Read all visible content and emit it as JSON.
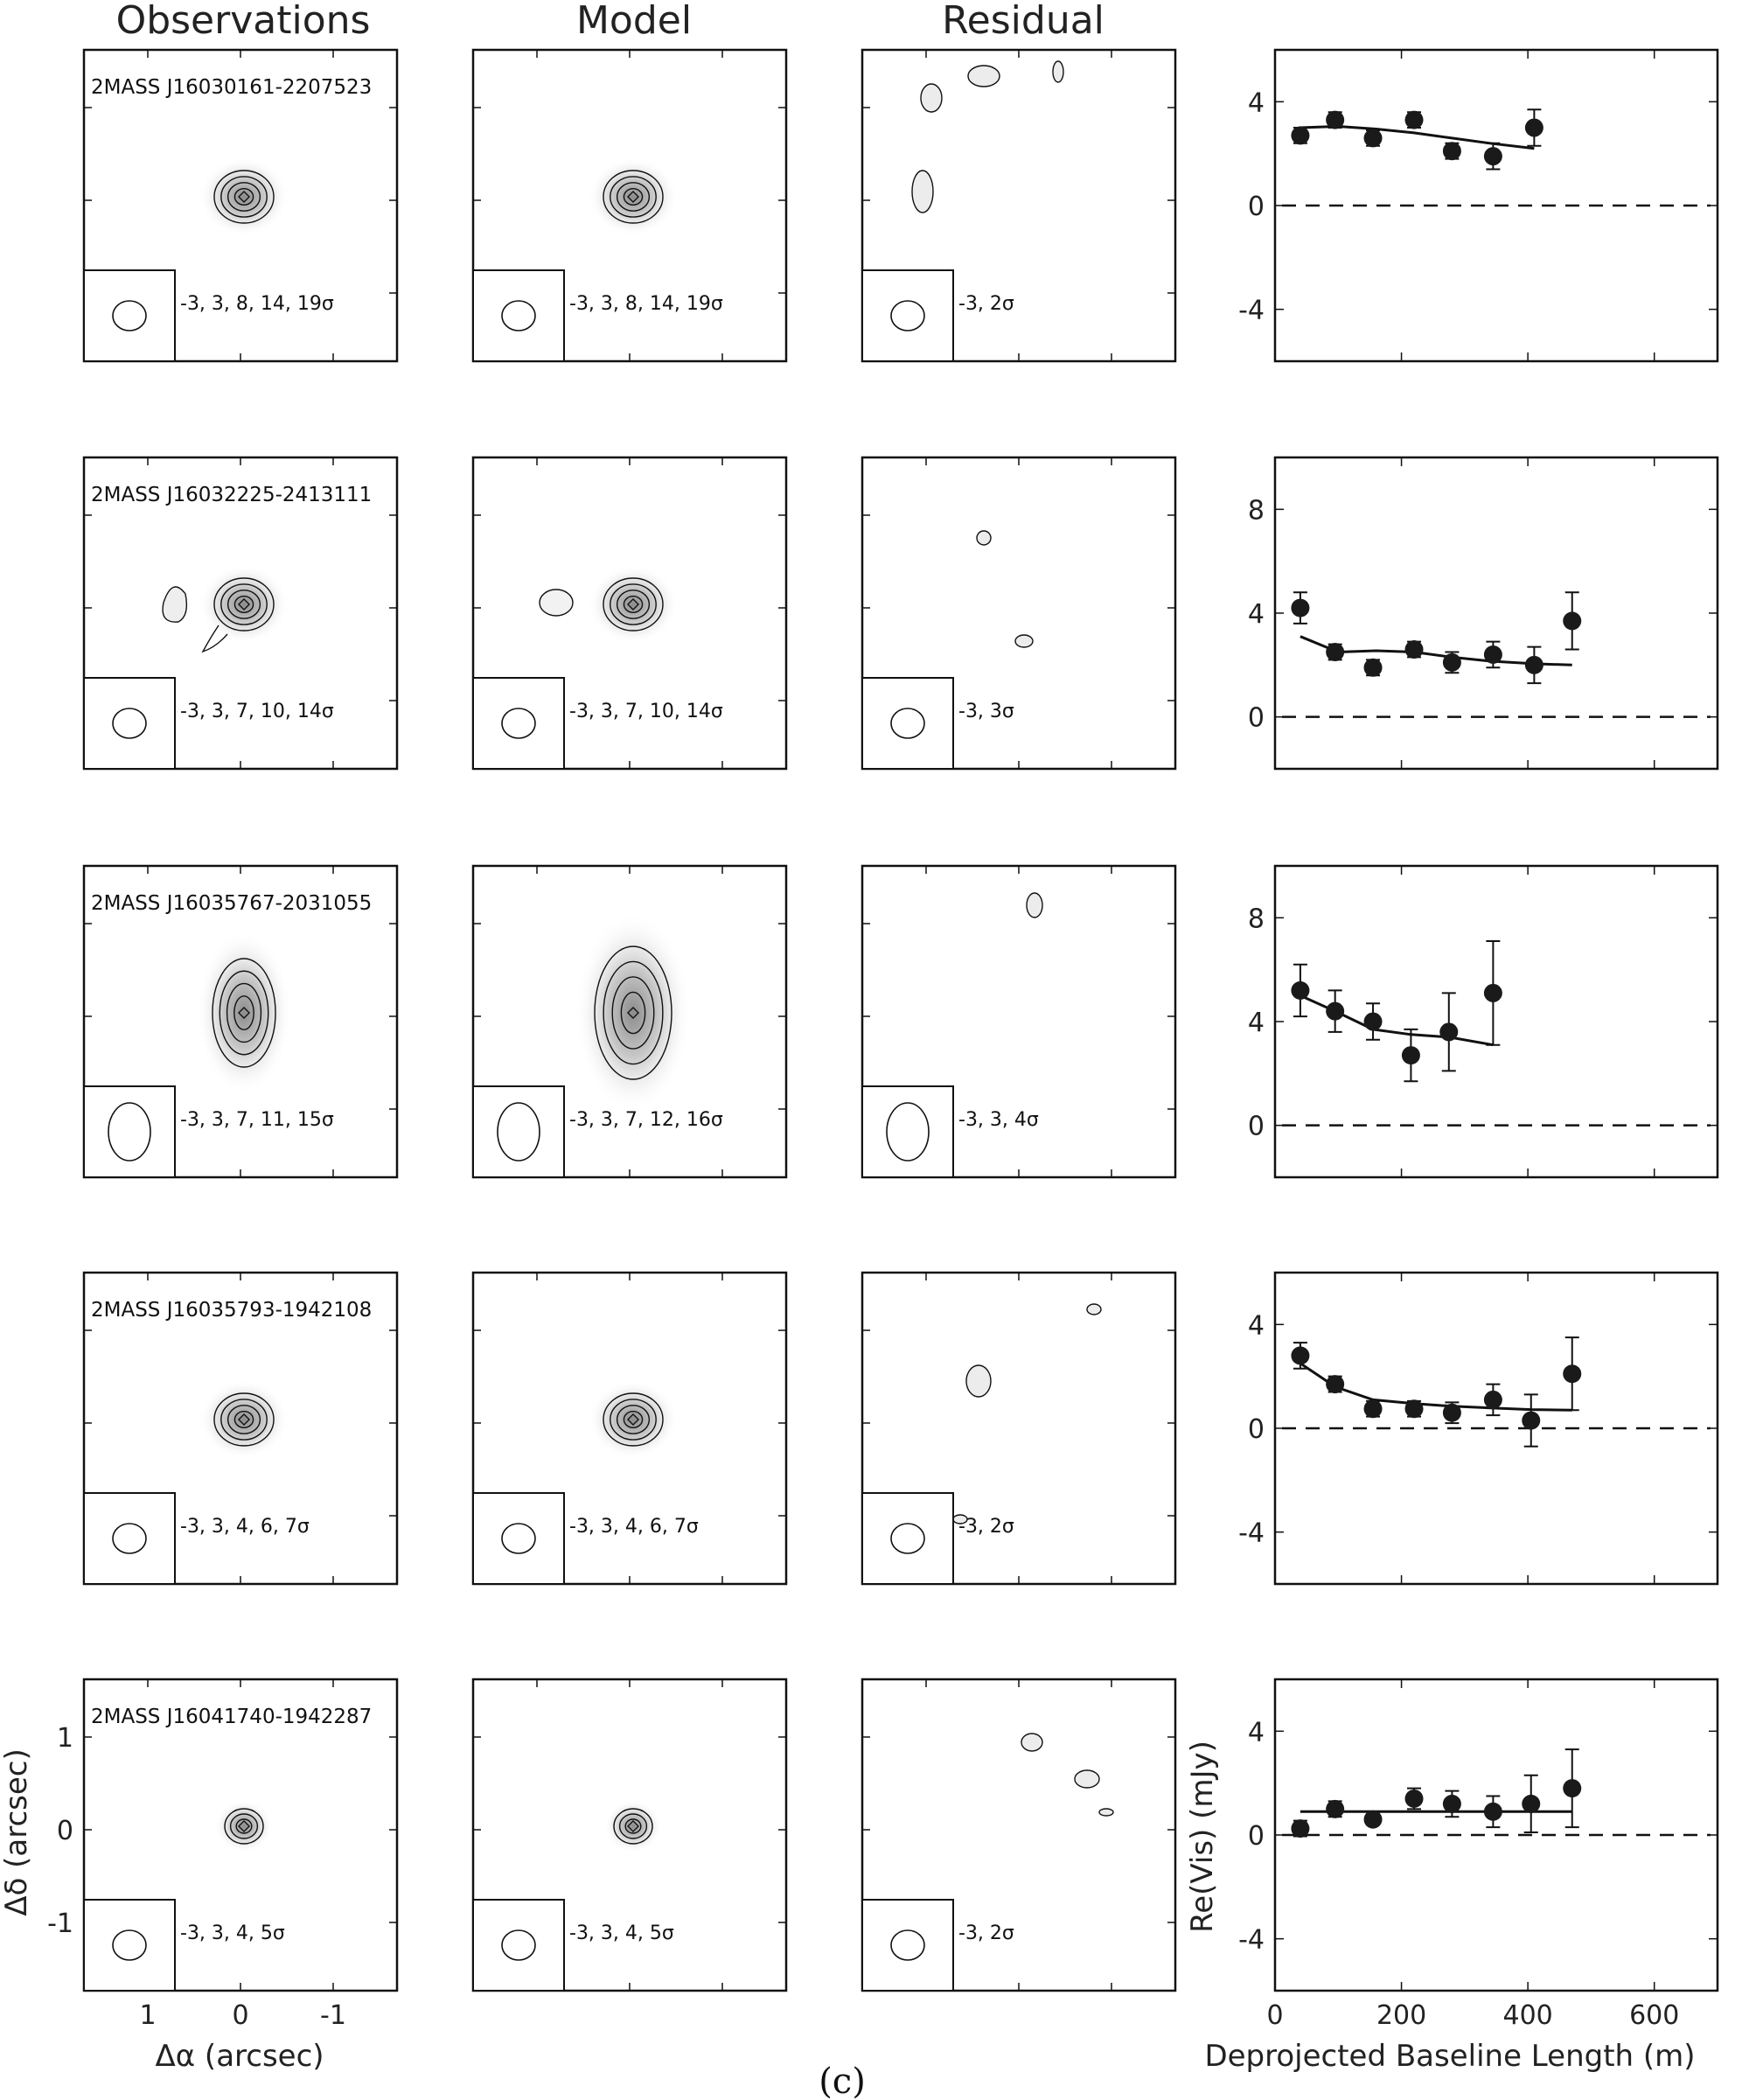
{
  "headers": [
    "Observations",
    "Model",
    "Residual"
  ],
  "caption": "(c)",
  "image_axes": {
    "xlabel": "Δα (arcsec)",
    "ylabel": "Δδ (arcsec)",
    "xticks": [
      "1",
      "0",
      "-1"
    ],
    "yticks": [
      "1",
      "0",
      "-1"
    ]
  },
  "vis_axes": {
    "xlabel": "Deprojected Baseline Length (m)",
    "ylabel": "Re(Vis) (mJy)",
    "xticks": [
      "0",
      "200",
      "400",
      "600"
    ]
  },
  "rows": [
    {
      "source": "2MASS J16030161-2207523",
      "obs_levels": "-3, 3, 8, 14, 19σ",
      "model_levels": "-3, 3, 8, 14, 19σ",
      "resid_levels": "-3, 2σ",
      "source_shape": "compact",
      "companion": false
    },
    {
      "source": "2MASS J16032225-2413111",
      "obs_levels": "-3, 3, 7, 10, 14σ",
      "model_levels": "-3, 3, 7, 10, 14σ",
      "resid_levels": "-3, 3σ",
      "source_shape": "compact",
      "companion": true
    },
    {
      "source": "2MASS J16035767-2031055",
      "obs_levels": "-3, 3, 7, 11, 15σ",
      "model_levels": "-3, 3, 7, 12, 16σ",
      "resid_levels": "-3, 3, 4σ",
      "source_shape": "elongated",
      "companion": false
    },
    {
      "source": "2MASS J16035793-1942108",
      "obs_levels": "-3, 3, 4, 6, 7σ",
      "model_levels": "-3, 3, 4, 6, 7σ",
      "resid_levels": "-3, 2σ",
      "source_shape": "compact",
      "companion": false
    },
    {
      "source": "2MASS J16041740-1942287",
      "obs_levels": "-3, 3, 4, 5σ",
      "model_levels": "-3, 3, 4, 5σ",
      "resid_levels": "-3, 2σ",
      "source_shape": "small",
      "companion": false
    }
  ],
  "chart_data": [
    {
      "type": "scatter",
      "xlabel": "Deprojected Baseline Length (m)",
      "ylabel": "Re(Vis) (mJy)",
      "xlim": [
        0,
        700
      ],
      "ylim": [
        -6,
        6
      ],
      "yticks": [
        -4,
        0,
        4
      ],
      "points": [
        {
          "x": 40,
          "y": 2.7,
          "err": 0.3
        },
        {
          "x": 95,
          "y": 3.3,
          "err": 0.3
        },
        {
          "x": 155,
          "y": 2.6,
          "err": 0.3
        },
        {
          "x": 220,
          "y": 3.3,
          "err": 0.3
        },
        {
          "x": 280,
          "y": 2.1,
          "err": 0.3
        },
        {
          "x": 345,
          "y": 1.9,
          "err": 0.5
        },
        {
          "x": 410,
          "y": 3.0,
          "err": 0.7
        }
      ],
      "model_line": {
        "x": [
          40,
          100,
          160,
          220,
          280,
          340,
          410
        ],
        "y": [
          3.0,
          3.05,
          2.95,
          2.8,
          2.6,
          2.4,
          2.2
        ]
      }
    },
    {
      "type": "scatter",
      "xlabel": "Deprojected Baseline Length (m)",
      "ylabel": "Re(Vis) (mJy)",
      "xlim": [
        0,
        700
      ],
      "ylim": [
        -2,
        10
      ],
      "yticks": [
        0,
        4,
        8
      ],
      "points": [
        {
          "x": 40,
          "y": 4.2,
          "err": 0.6
        },
        {
          "x": 95,
          "y": 2.5,
          "err": 0.3
        },
        {
          "x": 155,
          "y": 1.9,
          "err": 0.3
        },
        {
          "x": 220,
          "y": 2.6,
          "err": 0.3
        },
        {
          "x": 280,
          "y": 2.1,
          "err": 0.4
        },
        {
          "x": 345,
          "y": 2.4,
          "err": 0.5
        },
        {
          "x": 410,
          "y": 2.0,
          "err": 0.7
        },
        {
          "x": 470,
          "y": 3.7,
          "err": 1.1
        }
      ],
      "model_line": {
        "x": [
          40,
          100,
          160,
          220,
          280,
          340,
          410,
          470
        ],
        "y": [
          3.1,
          2.5,
          2.55,
          2.5,
          2.3,
          2.15,
          2.05,
          2.0
        ]
      }
    },
    {
      "type": "scatter",
      "xlabel": "Deprojected Baseline Length (m)",
      "ylabel": "Re(Vis) (mJy)",
      "xlim": [
        0,
        700
      ],
      "ylim": [
        -2,
        10
      ],
      "yticks": [
        0,
        4,
        8
      ],
      "points": [
        {
          "x": 40,
          "y": 5.2,
          "err": 1.0
        },
        {
          "x": 95,
          "y": 4.4,
          "err": 0.8
        },
        {
          "x": 155,
          "y": 4.0,
          "err": 0.7
        },
        {
          "x": 215,
          "y": 2.7,
          "err": 1.0
        },
        {
          "x": 275,
          "y": 3.6,
          "err": 1.5
        },
        {
          "x": 345,
          "y": 5.1,
          "err": 2.0
        }
      ],
      "model_line": {
        "x": [
          40,
          95,
          155,
          215,
          275,
          345
        ],
        "y": [
          5.0,
          4.4,
          3.7,
          3.5,
          3.4,
          3.1
        ]
      }
    },
    {
      "type": "scatter",
      "xlabel": "Deprojected Baseline Length (m)",
      "ylabel": "Re(Vis) (mJy)",
      "xlim": [
        0,
        700
      ],
      "ylim": [
        -6,
        6
      ],
      "yticks": [
        -4,
        0,
        4
      ],
      "points": [
        {
          "x": 40,
          "y": 2.8,
          "err": 0.5
        },
        {
          "x": 95,
          "y": 1.7,
          "err": 0.3
        },
        {
          "x": 155,
          "y": 0.75,
          "err": 0.3
        },
        {
          "x": 220,
          "y": 0.75,
          "err": 0.3
        },
        {
          "x": 280,
          "y": 0.6,
          "err": 0.4
        },
        {
          "x": 345,
          "y": 1.1,
          "err": 0.6
        },
        {
          "x": 405,
          "y": 0.3,
          "err": 1.0
        },
        {
          "x": 470,
          "y": 2.1,
          "err": 1.4
        }
      ],
      "model_line": {
        "x": [
          40,
          95,
          155,
          220,
          280,
          345,
          405,
          470
        ],
        "y": [
          2.5,
          1.6,
          1.1,
          0.95,
          0.85,
          0.78,
          0.72,
          0.7
        ]
      }
    },
    {
      "type": "scatter",
      "xlabel": "Deprojected Baseline Length (m)",
      "ylabel": "Re(Vis) (mJy)",
      "xlim": [
        0,
        700
      ],
      "ylim": [
        -6,
        6
      ],
      "yticks": [
        -4,
        0,
        4
      ],
      "points": [
        {
          "x": 40,
          "y": 0.25,
          "err": 0.3
        },
        {
          "x": 95,
          "y": 1.0,
          "err": 0.3
        },
        {
          "x": 155,
          "y": 0.6,
          "err": 0.2
        },
        {
          "x": 220,
          "y": 1.4,
          "err": 0.4
        },
        {
          "x": 280,
          "y": 1.2,
          "err": 0.5
        },
        {
          "x": 345,
          "y": 0.9,
          "err": 0.6
        },
        {
          "x": 405,
          "y": 1.2,
          "err": 1.1
        },
        {
          "x": 470,
          "y": 1.8,
          "err": 1.5
        }
      ],
      "model_line": {
        "x": [
          40,
          470
        ],
        "y": [
          0.9,
          0.9
        ]
      }
    }
  ]
}
